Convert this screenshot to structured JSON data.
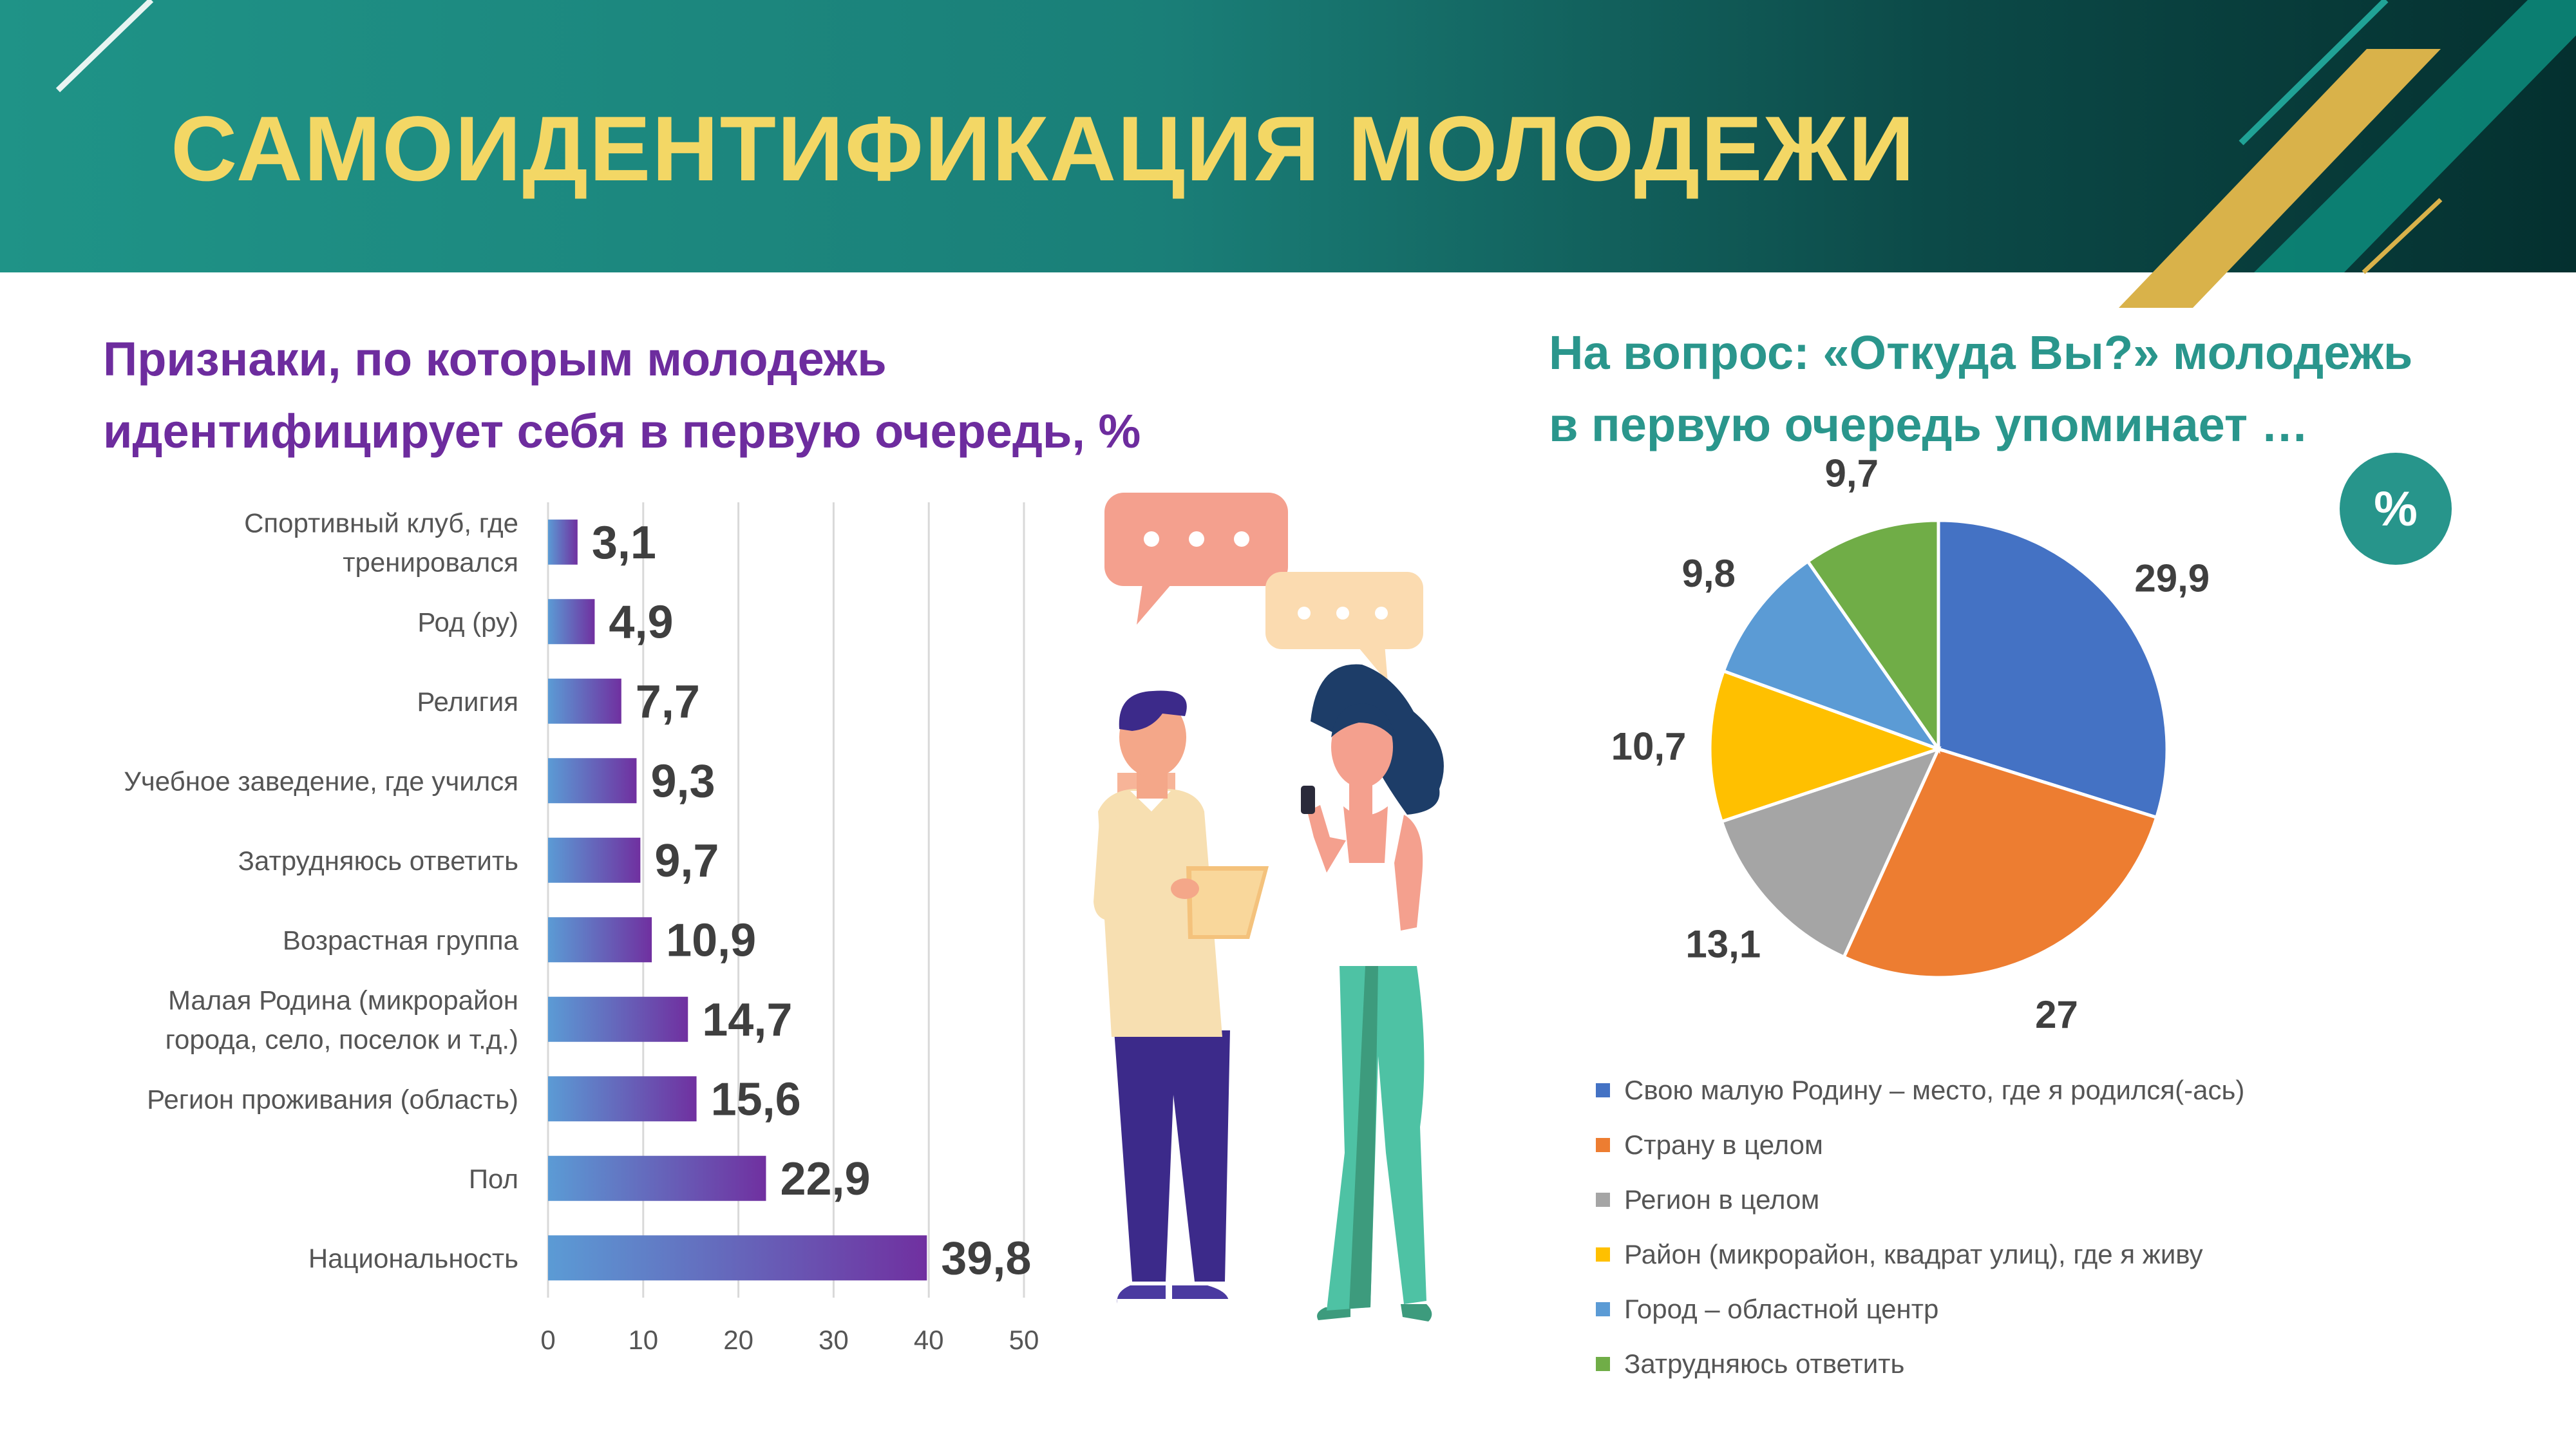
{
  "page": {
    "title": "САМОИДЕНТИФИКАЦИЯ МОЛОДЕЖИ"
  },
  "colors": {
    "title": "#f3d765",
    "bar_subtitle": "#6d2c9e",
    "pie_subtitle": "#2a968c",
    "bar_gradient_start": "#5b9bd5",
    "bar_gradient_end": "#7030a0",
    "gold_accent": "#d9b24a"
  },
  "badge": {
    "label": "%"
  },
  "chart_data": [
    {
      "type": "bar",
      "orientation": "horizontal",
      "title": "Признаки, по которым молодежь идентифицирует себя в первую очередь, %",
      "title_lines": [
        "Признаки, по которым молодежь",
        "идентифицирует себя в первую очередь, %"
      ],
      "categories": [
        [
          "Спортивный клуб, где",
          "тренировался"
        ],
        [
          "Род (ру)"
        ],
        [
          "Религия"
        ],
        [
          "Учебное заведение, где учился"
        ],
        [
          "Затрудняюсь ответить"
        ],
        [
          "Возрастная группа"
        ],
        [
          "Малая Родина (микрорайон",
          "города, село, поселок и т.д.)"
        ],
        [
          "Регион проживания (область)"
        ],
        [
          "Пол"
        ],
        [
          "Национальность"
        ]
      ],
      "values": [
        3.1,
        4.9,
        7.7,
        9.3,
        9.7,
        10.9,
        14.7,
        15.6,
        22.9,
        39.8
      ],
      "value_labels": [
        "3,1",
        "4,9",
        "7,7",
        "9,3",
        "9,7",
        "10,9",
        "14,7",
        "15,6",
        "22,9",
        "39,8"
      ],
      "xlim": [
        0,
        50
      ],
      "xticks": [
        "0",
        "10",
        "20",
        "30",
        "40",
        "50"
      ],
      "grid": "vertical"
    },
    {
      "type": "pie",
      "title": "На вопрос: «Откуда Вы?» молодежь в первую очередь упоминает …",
      "title_lines": [
        "На вопрос: «Откуда Вы?» молодежь",
        "в первую очередь упоминает …"
      ],
      "slices": [
        {
          "label": "Свою малую Родину – место, где я родился(-ась)",
          "value": 29.9,
          "value_label": "29,9",
          "color": "#4472c4"
        },
        {
          "label": "Страну в целом",
          "value": 27,
          "value_label": "27",
          "color": "#ed7d31"
        },
        {
          "label": "Регион в целом",
          "value": 13.1,
          "value_label": "13,1",
          "color": "#a5a5a5"
        },
        {
          "label": "Район (микрорайон, квадрат улиц), где я живу",
          "value": 10.7,
          "value_label": "10,7",
          "color": "#ffc000"
        },
        {
          "label": "Город – областной центр",
          "value": 9.8,
          "value_label": "9,8",
          "color": "#5b9bd5"
        },
        {
          "label": "Затрудняюсь ответить",
          "value": 9.7,
          "value_label": "9,7",
          "color": "#70ad47"
        }
      ],
      "legend": "bottom"
    }
  ]
}
